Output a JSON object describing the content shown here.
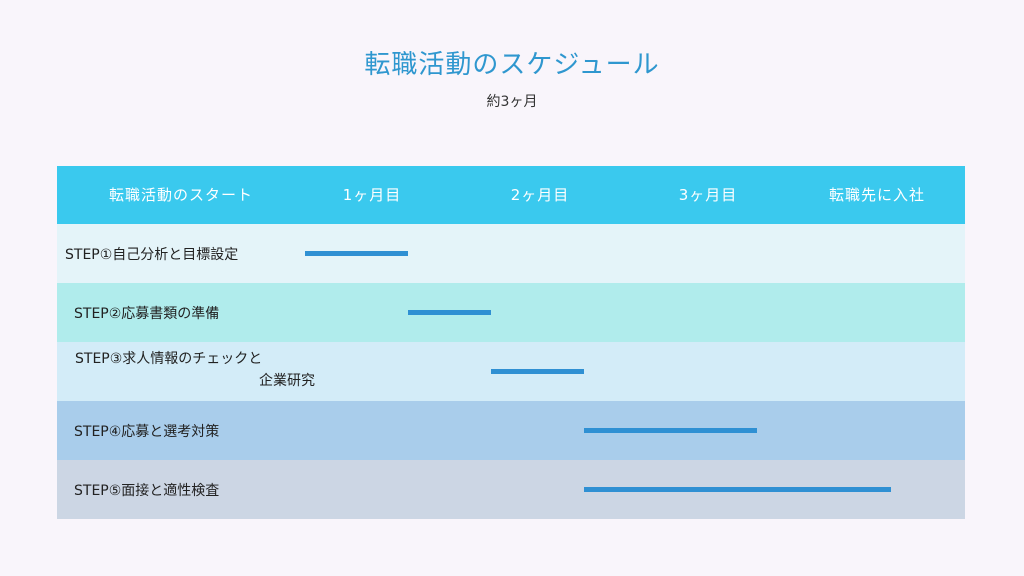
{
  "title": "転職活動のスケジュール",
  "subtitle": "約3ヶ月",
  "header": {
    "columns": [
      "転職活動のスタート",
      "1ヶ月目",
      "2ヶ月目",
      "3ヶ月目",
      "転職先に入社"
    ]
  },
  "timeline_months": [
    0,
    1,
    2,
    3,
    4
  ],
  "steps": [
    {
      "label": "STEP①自己分析と目標設定",
      "label_line2": "",
      "start_month": 0.0,
      "end_month": 0.62,
      "row_color": "#e4f4f9"
    },
    {
      "label": "STEP②応募書類の準備",
      "label_line2": "",
      "start_month": 0.62,
      "end_month": 1.12,
      "row_color": "#b0ecec"
    },
    {
      "label": "STEP③求人情報のチェックと",
      "label_line2": "企業研究",
      "start_month": 1.12,
      "end_month": 1.68,
      "row_color": "#d3ecf8"
    },
    {
      "label": "STEP④応募と選考対策",
      "label_line2": "",
      "start_month": 1.68,
      "end_month": 2.72,
      "row_color": "#a9cdeb"
    },
    {
      "label": "STEP⑤面接と適性検査",
      "label_line2": "",
      "start_month": 1.68,
      "end_month": 3.53,
      "row_color": "#ccd6e4"
    }
  ],
  "colors": {
    "title": "#2f97cf",
    "header_bg": "#3ac9ee",
    "bar": "#2f90d3",
    "background": "#f9f5fb"
  }
}
